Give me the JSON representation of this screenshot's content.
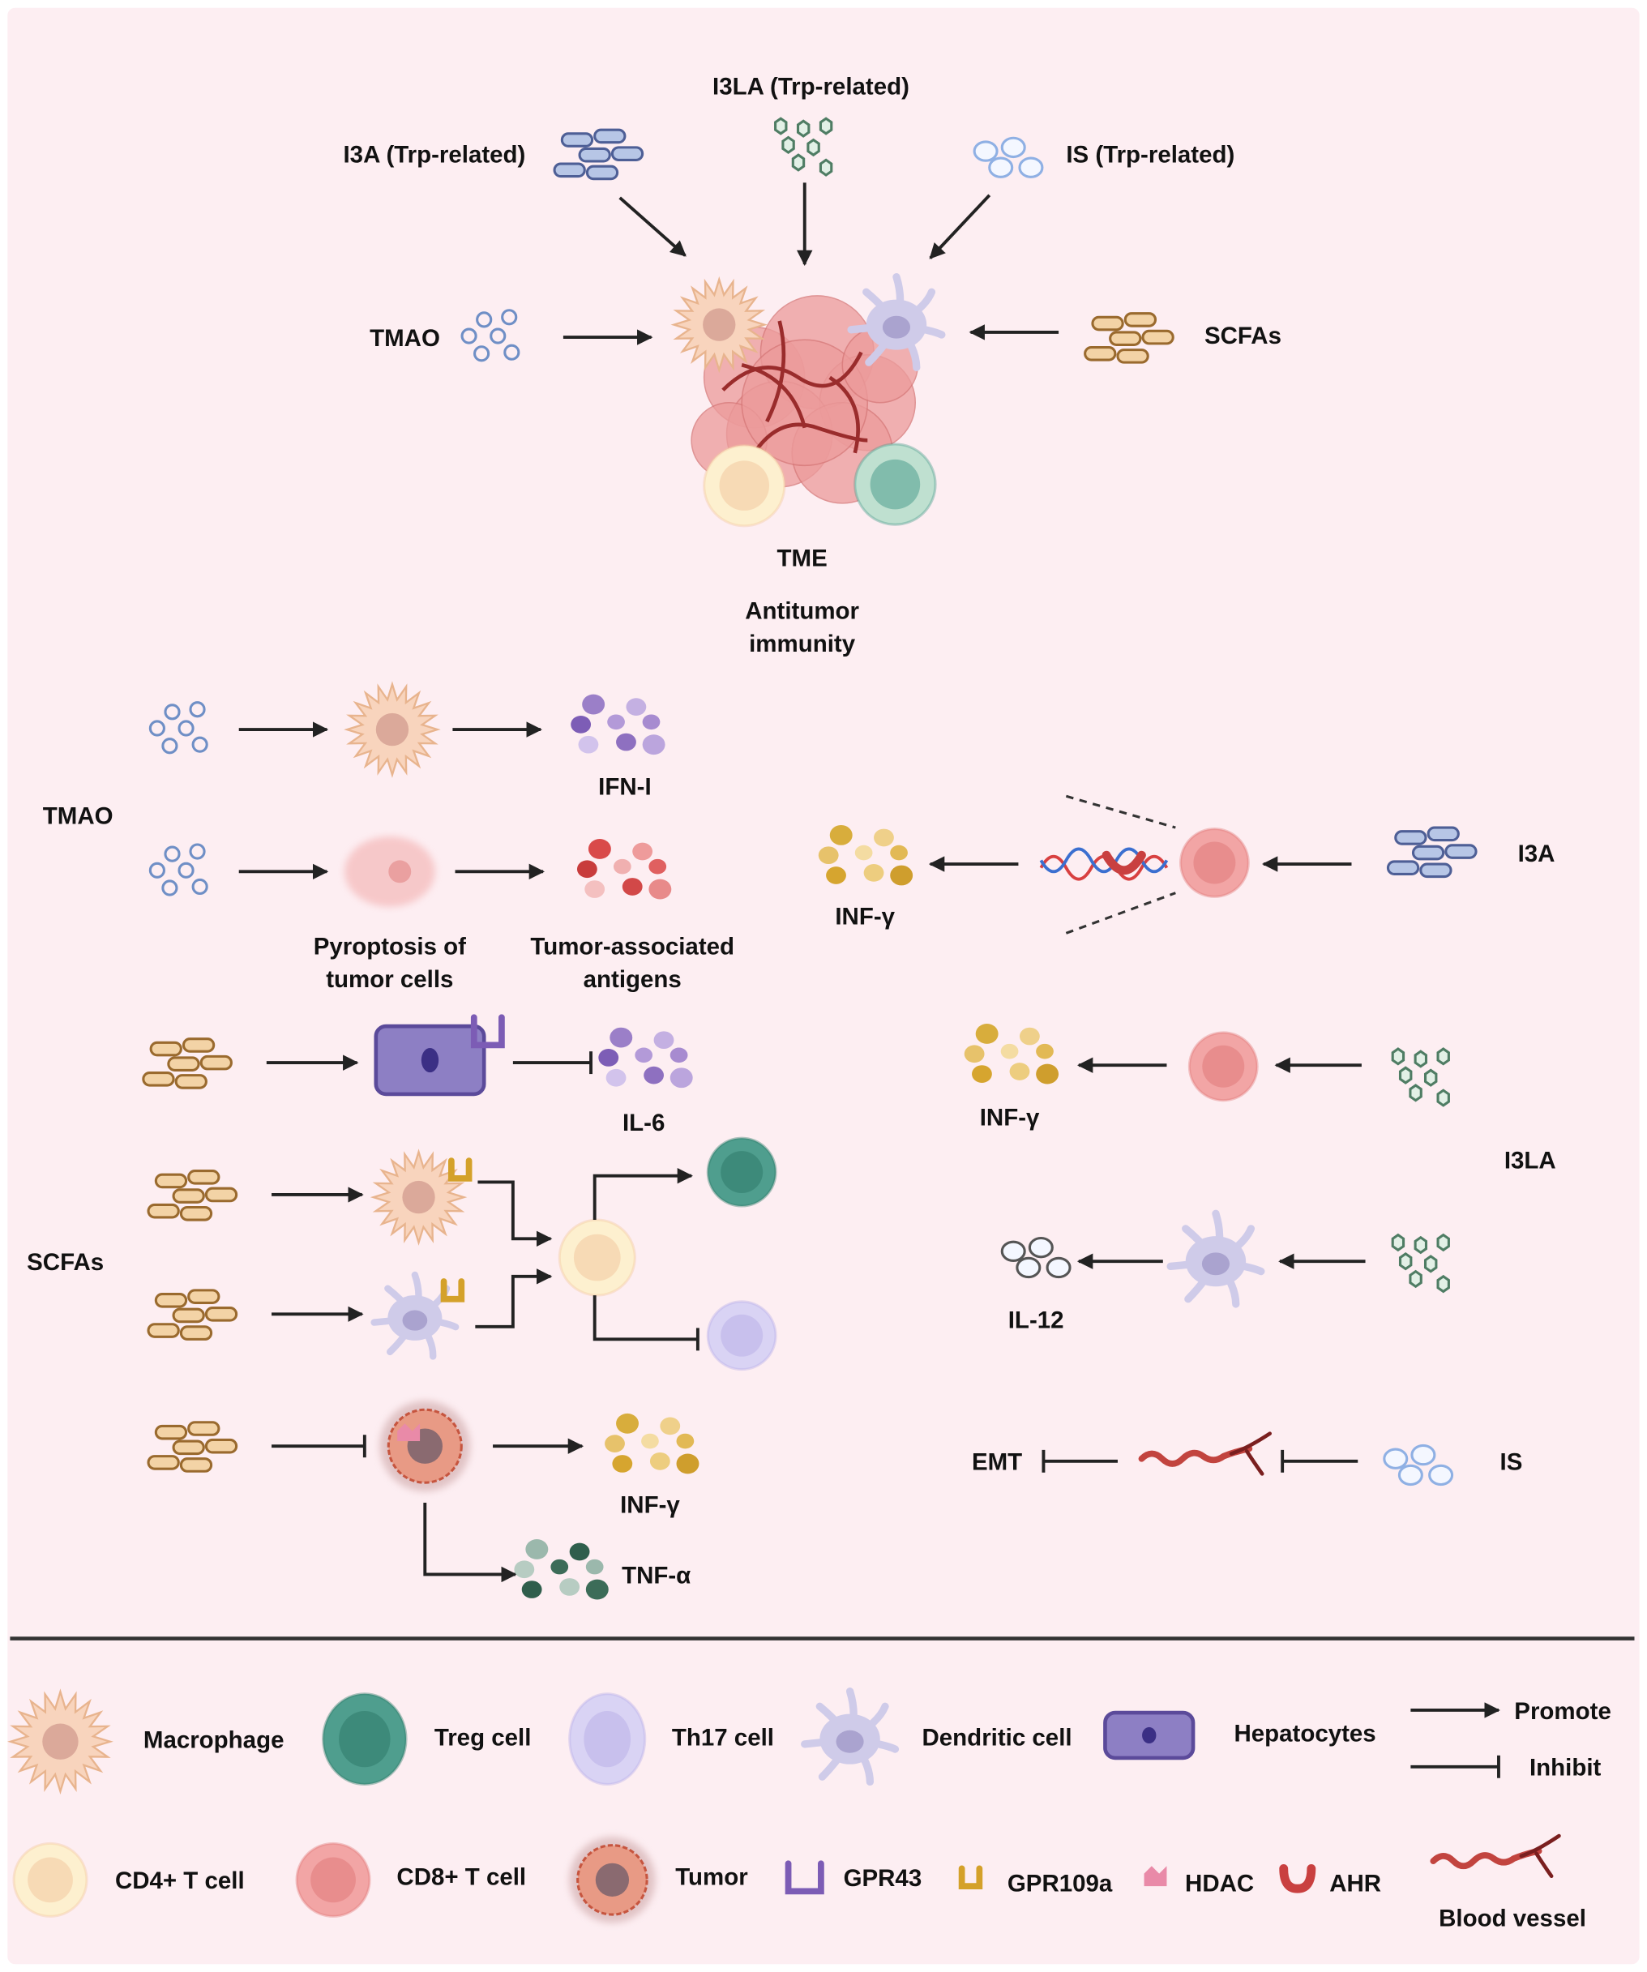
{
  "colors": {
    "background": "#fdeef2",
    "macrophage": "#f8d4bd",
    "treg": "#4f9e8e",
    "th17": "#d9d3f4",
    "dendritic": "#cfcbe9",
    "hepatocyte": "#8d7fc4",
    "cd4": "#fdf0cf",
    "cd8": "#f2a5a5",
    "tumor": "#e89a85",
    "gpr43": "#7c5cb5",
    "gpr109a": "#d4a12a",
    "hdac": "#e98aa8",
    "ahr": "#c94040",
    "blood_vessel": "#c2443f"
  },
  "top": {
    "i3a": "I3A (Trp-related)",
    "i3la": "I3LA (Trp-related)",
    "is": "IS (Trp-related)",
    "tmao": "TMAO",
    "scfas": "SCFAs",
    "tme": "TME",
    "antitumor_line1": "Antitumor",
    "antitumor_line2": "immunity"
  },
  "left": {
    "tmao": "TMAO",
    "ifn_i": "IFN-I",
    "pyroptosis_line1": "Pyroptosis of",
    "pyroptosis_line2": "tumor cells",
    "taa_line1": "Tumor-associated",
    "taa_line2": "antigens",
    "scfas": "SCFAs",
    "il6": "IL-6",
    "inf_gamma": "INF-γ",
    "tnf_alpha": "TNF-α"
  },
  "right": {
    "i3a": "I3A",
    "inf_gamma_1": "INF-γ",
    "inf_gamma_2": "INF-γ",
    "i3la": "I3LA",
    "il12": "IL-12",
    "emt": "EMT",
    "is": "IS"
  },
  "legend": {
    "macrophage": "Macrophage",
    "treg": "Treg cell",
    "th17": "Th17 cell",
    "dendritic": "Dendritic cell",
    "hepatocytes": "Hepatocytes",
    "promote": "Promote",
    "inhibit": "Inhibit",
    "cd4": "CD4+ T cell",
    "cd8": "CD8+ T cell",
    "tumor": "Tumor",
    "gpr43": "GPR43",
    "gpr109a": "GPR109a",
    "hdac": "HDAC",
    "ahr": "AHR",
    "blood_vessel": "Blood vessel"
  }
}
